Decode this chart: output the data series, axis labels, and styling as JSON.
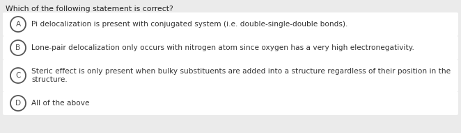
{
  "title": "Which of the following statement is correct?",
  "background_color": "#ebebeb",
  "options_bg_color": "#ffffff",
  "title_fontsize": 7.8,
  "option_fontsize": 7.6,
  "title_color": "#222222",
  "text_color": "#333333",
  "circle_edgecolor": "#555555",
  "circle_facecolor": "#ffffff",
  "options": [
    {
      "label": "A",
      "lines": [
        "Pi delocalization is present with conjugated system (i.e. double-single-double bonds)."
      ]
    },
    {
      "label": "B",
      "lines": [
        "Lone-pair delocalization only occurs with nitrogen atom since oxygen has a very high electronegativity."
      ]
    },
    {
      "label": "C",
      "lines": [
        "Steric effect is only present when bulky substituents are added into a structure regardless of their position in the",
        "structure."
      ]
    },
    {
      "label": "D",
      "lines": [
        "All of the above"
      ]
    }
  ],
  "fig_width": 6.62,
  "fig_height": 1.92,
  "dpi": 100
}
